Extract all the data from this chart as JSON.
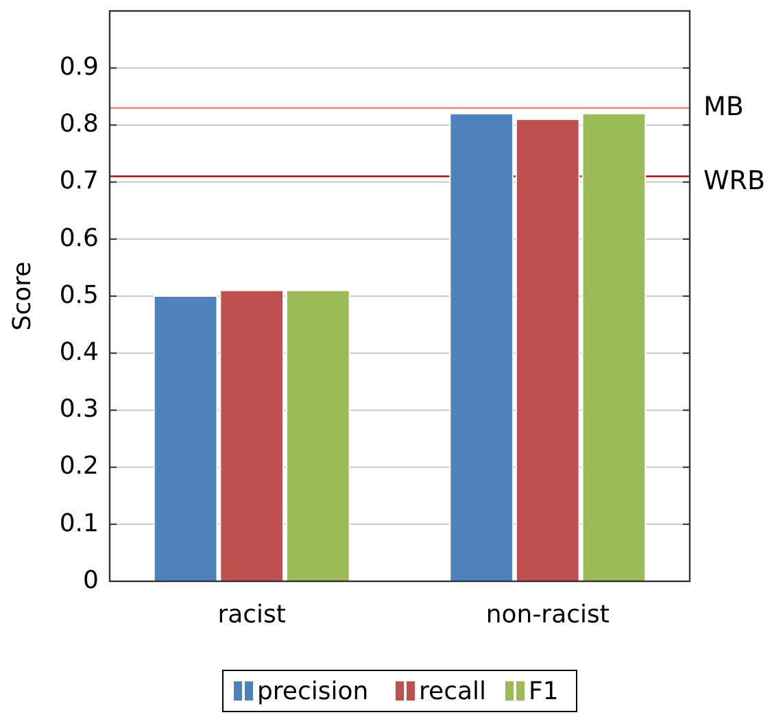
{
  "chart_data": {
    "type": "bar",
    "ylabel": "Score",
    "categories": [
      "racist",
      "non-racist"
    ],
    "series": [
      {
        "name": "precision",
        "color": "#4f81bd",
        "values": [
          0.5,
          0.82
        ]
      },
      {
        "name": "recall",
        "color": "#c0504d",
        "values": [
          0.51,
          0.81
        ]
      },
      {
        "name": "F1",
        "color": "#9bbb59",
        "values": [
          0.51,
          0.82
        ]
      }
    ],
    "ylim": [
      0,
      1
    ],
    "yticks": [
      0,
      0.1,
      0.2,
      0.3,
      0.4,
      0.5,
      0.6,
      0.7,
      0.8,
      0.9
    ],
    "grid": "y",
    "legend": "bottom",
    "ref_lines": [
      {
        "axis": "y",
        "value": 0.83,
        "label": "MB",
        "color": "#ff8080"
      },
      {
        "axis": "y",
        "value": 0.71,
        "label": "WRB",
        "color": "#cc0000"
      }
    ]
  }
}
